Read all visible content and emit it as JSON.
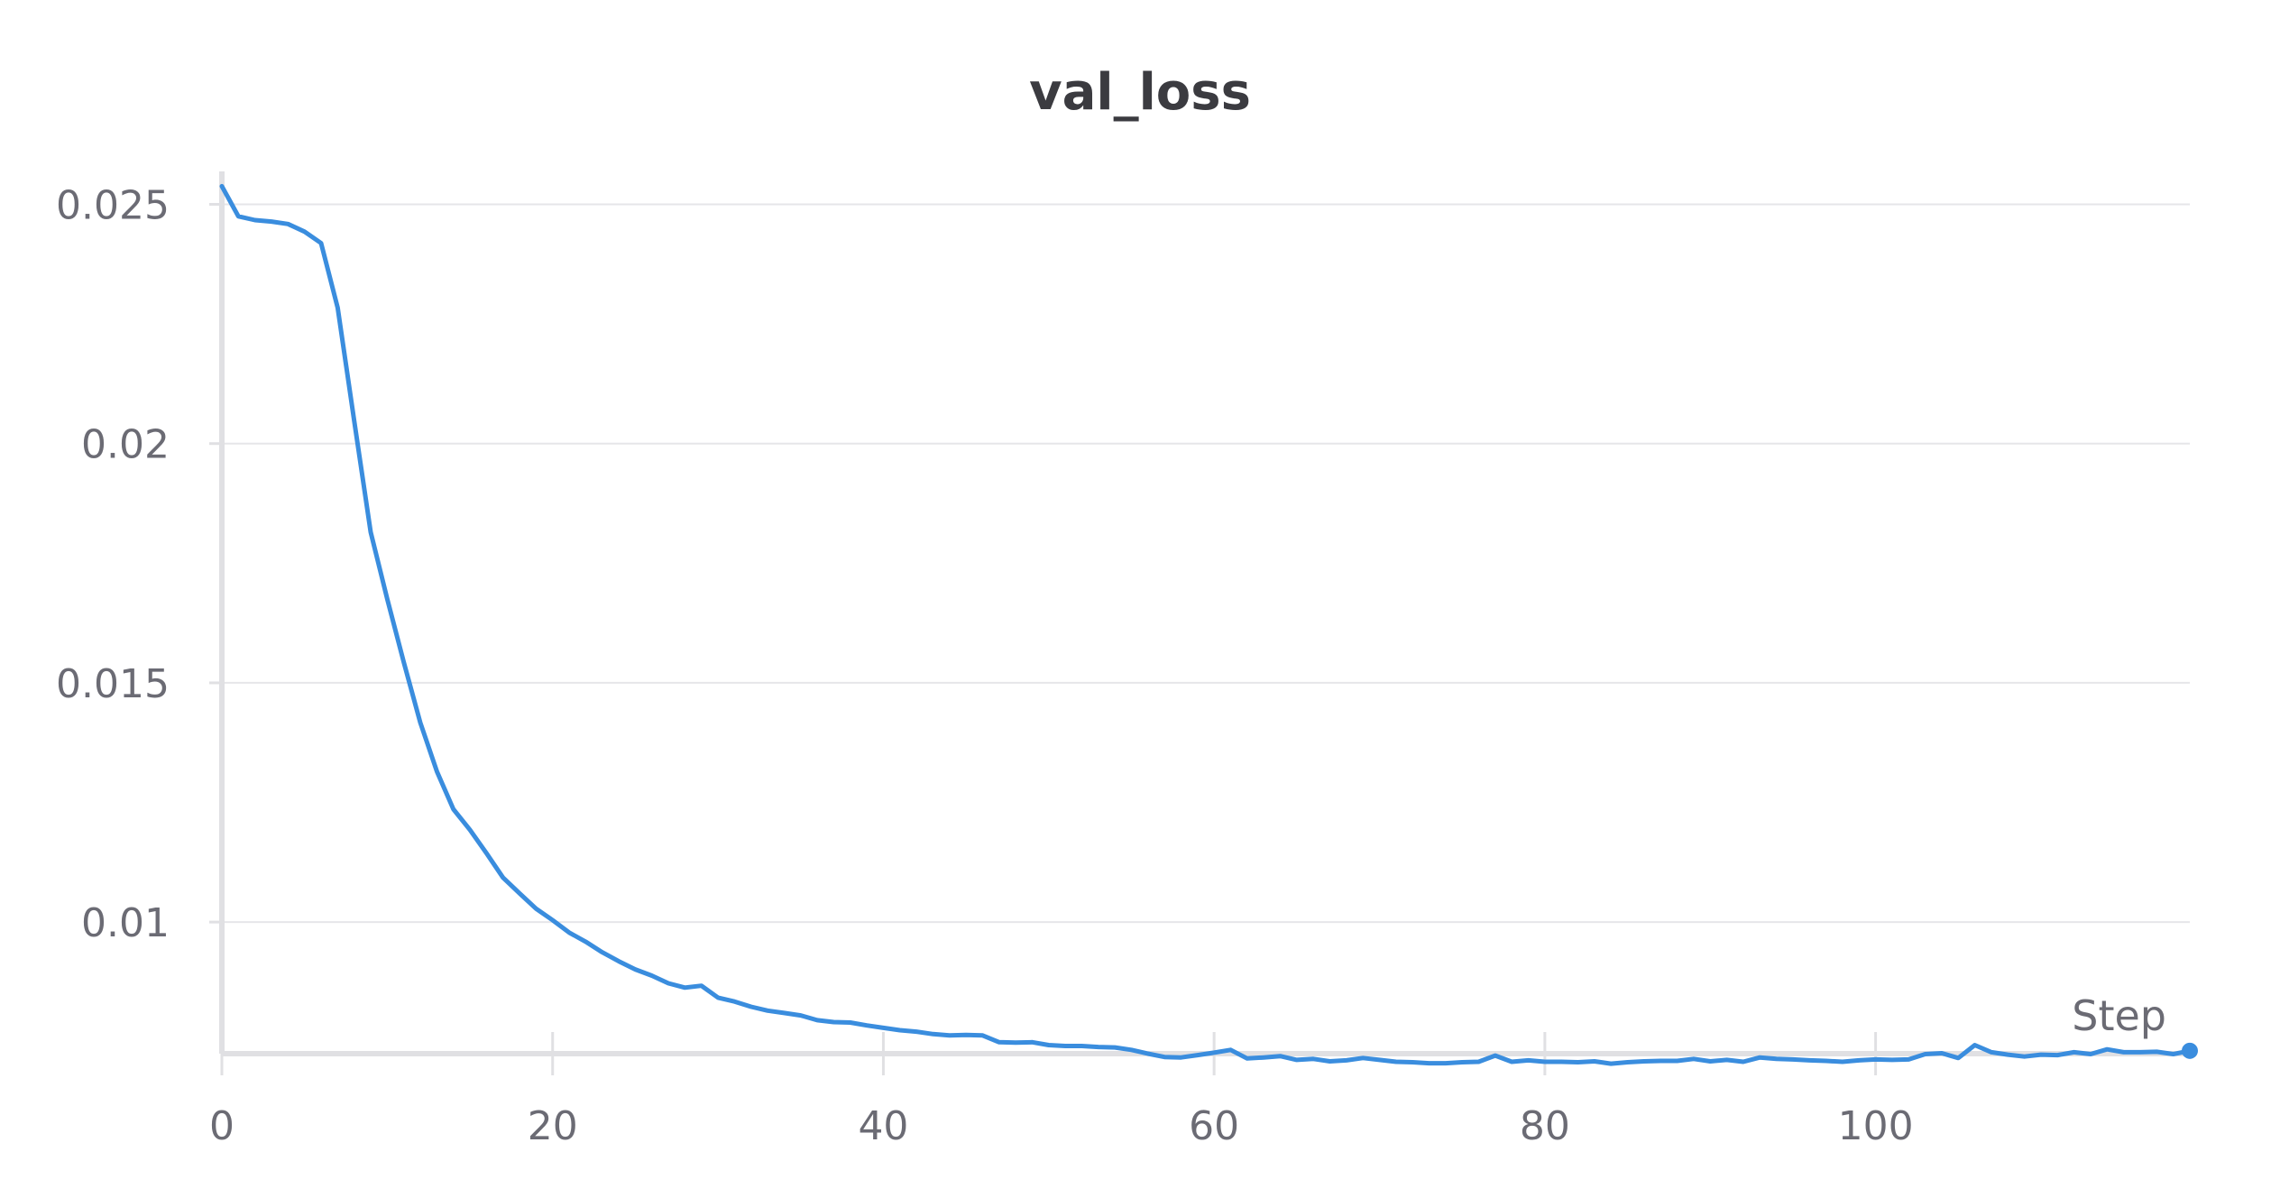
{
  "chart_data": {
    "type": "line",
    "title": "val_loss",
    "xlabel": "Step",
    "ylabel": "",
    "xlim": [
      0,
      119
    ],
    "ylim": [
      0.00725,
      0.0255
    ],
    "xticks": [
      0,
      20,
      40,
      60,
      80,
      100
    ],
    "yticks": [
      0.01,
      0.015,
      0.02,
      0.025
    ],
    "ytick_labels": [
      "0.01",
      "0.015",
      "0.02",
      "0.025"
    ],
    "grid": true,
    "legend": "none",
    "series": [
      {
        "color": "#3a8dde",
        "x": [
          0,
          1,
          2,
          3,
          4,
          5,
          6,
          7,
          8,
          9,
          10,
          11,
          12,
          13,
          14,
          15,
          16,
          17,
          18,
          19,
          20,
          21,
          22,
          23,
          24,
          25,
          26,
          27,
          28,
          29,
          30,
          31,
          32,
          33,
          34,
          35,
          36,
          37,
          38,
          39,
          40,
          41,
          42,
          43,
          44,
          45,
          46,
          47,
          48,
          49,
          50,
          51,
          52,
          53,
          54,
          55,
          56,
          57,
          58,
          59,
          60,
          61,
          62,
          63,
          64,
          65,
          66,
          67,
          68,
          69,
          70,
          71,
          72,
          73,
          74,
          75,
          76,
          77,
          78,
          79,
          80,
          81,
          82,
          83,
          84,
          85,
          86,
          87,
          88,
          89,
          90,
          91,
          92,
          93,
          94,
          95,
          96,
          97,
          98,
          99,
          100,
          101,
          102,
          103,
          104,
          105,
          106,
          107,
          108,
          109,
          110,
          111,
          112,
          113,
          114,
          115,
          116,
          117,
          118,
          119
        ],
        "y": [
          0.02538,
          0.02475,
          0.02467,
          0.02464,
          0.02459,
          0.02443,
          0.02419,
          0.02284,
          0.02048,
          0.01815,
          0.01675,
          0.01543,
          0.01417,
          0.01315,
          0.01236,
          0.01193,
          0.01144,
          0.01093,
          0.0106,
          0.01028,
          0.01004,
          0.00978,
          0.00959,
          0.00937,
          0.00918,
          0.00901,
          0.00888,
          0.00872,
          0.00863,
          0.00867,
          0.00842,
          0.00834,
          0.00823,
          0.00815,
          0.0081,
          0.00805,
          0.00795,
          0.00791,
          0.0079,
          0.00784,
          0.00779,
          0.00774,
          0.00771,
          0.00766,
          0.00763,
          0.00764,
          0.00763,
          0.00749,
          0.00748,
          0.00749,
          0.00743,
          0.00741,
          0.00741,
          0.00739,
          0.00738,
          0.00733,
          0.00725,
          0.00718,
          0.00717,
          0.00722,
          0.00727,
          0.00733,
          0.00715,
          0.00717,
          0.0072,
          0.00712,
          0.00714,
          0.00709,
          0.00711,
          0.00716,
          0.00712,
          0.00708,
          0.00707,
          0.00705,
          0.00705,
          0.00707,
          0.00708,
          0.00721,
          0.00708,
          0.00711,
          0.00708,
          0.00708,
          0.00707,
          0.00709,
          0.00704,
          0.00707,
          0.00709,
          0.0071,
          0.0071,
          0.00714,
          0.00709,
          0.00712,
          0.00708,
          0.00717,
          0.00714,
          0.00713,
          0.00711,
          0.0071,
          0.00708,
          0.00711,
          0.00713,
          0.00712,
          0.00713,
          0.00724,
          0.00726,
          0.00716,
          0.00743,
          0.00728,
          0.00723,
          0.00719,
          0.00723,
          0.00722,
          0.00728,
          0.00724,
          0.00734,
          0.00728,
          0.00728,
          0.00729,
          0.00724,
          0.00731
        ]
      }
    ]
  }
}
